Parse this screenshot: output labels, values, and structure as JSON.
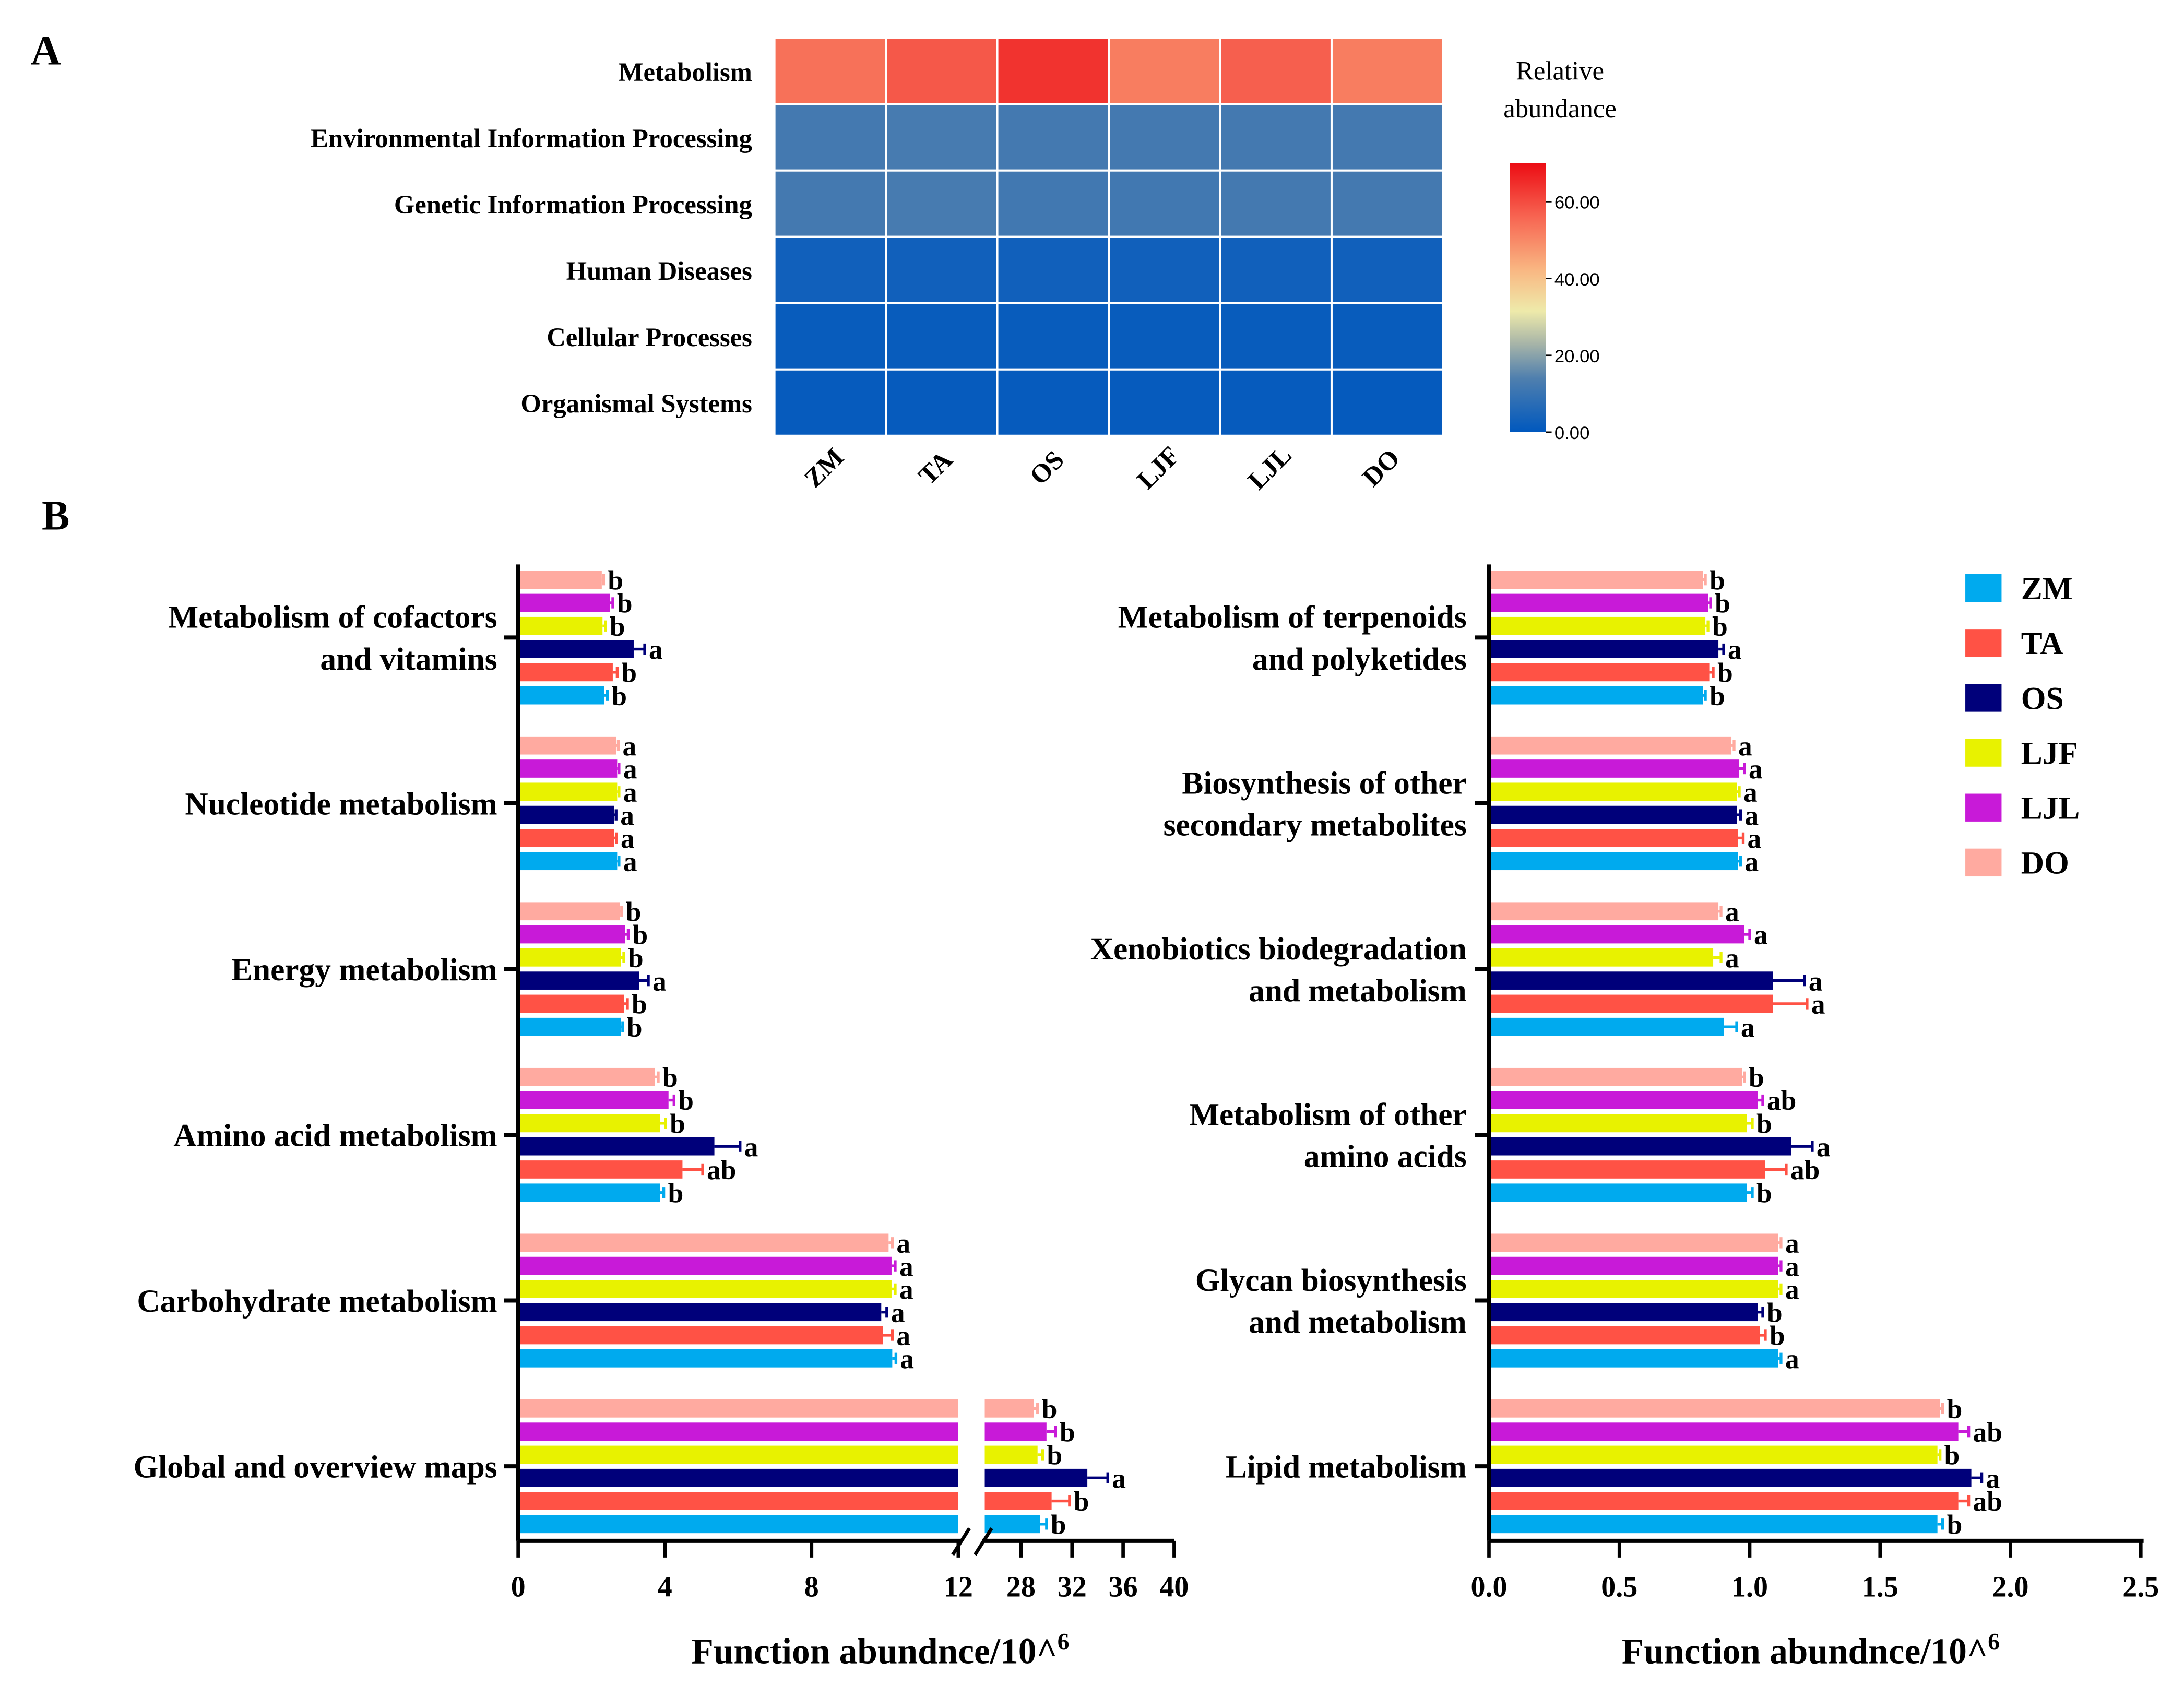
{
  "panel_labels": {
    "a": "A",
    "b": "B"
  },
  "groups": [
    "ZM",
    "TA",
    "OS",
    "LJF",
    "LJL",
    "DO"
  ],
  "colors": {
    "ZM": "#00aaee",
    "TA": "#ff5245",
    "OS": "#00007a",
    "LJF": "#e8f200",
    "LJL": "#c81ad8",
    "DO": "#ffaaa0"
  },
  "chart_data": [
    {
      "type": "heatmap",
      "rows": [
        "Metabolism",
        "Environmental Information Processing",
        "Genetic Information Processing",
        "Human Diseases",
        "Cellular Processes",
        "Organismal Systems"
      ],
      "columns": [
        "ZM",
        "TA",
        "OS",
        "LJF",
        "LJL",
        "DO"
      ],
      "values": [
        [
          54,
          58,
          64,
          52,
          57,
          52
        ],
        [
          12,
          12.5,
          12,
          12,
          12,
          12
        ],
        [
          12,
          12.5,
          11.5,
          11.5,
          12,
          12
        ],
        [
          3,
          3,
          3,
          3,
          3,
          3
        ],
        [
          1.5,
          1.5,
          1.5,
          1.5,
          1.5,
          1.5
        ],
        [
          1,
          1,
          1,
          1,
          1,
          0.8
        ]
      ],
      "colorbar": {
        "title_line1": "Relative",
        "title_line2": "abundance",
        "range": [
          0,
          70
        ],
        "ticks": [
          "0.00",
          "20.00",
          "40.00",
          "60.00"
        ],
        "tick_values": [
          0,
          20,
          40,
          60
        ]
      }
    },
    {
      "type": "bar",
      "orientation": "horizontal",
      "xlabel": "Function abundnce/10^",
      "xlabel_sup": "6",
      "axis_break": [
        12,
        25.2
      ],
      "ticks": [
        0,
        4,
        8,
        12,
        28,
        32,
        36,
        40
      ],
      "categories": [
        {
          "label": [
            "Metabolism of cofactors",
            "and vitamins"
          ],
          "values": [
            2.35,
            2.58,
            3.15,
            2.3,
            2.5,
            2.28
          ],
          "errors": [
            0.08,
            0.12,
            0.3,
            0.08,
            0.08,
            0.05
          ],
          "letters": [
            "b",
            "b",
            "a",
            "b",
            "b",
            "b"
          ]
        },
        {
          "label": [
            "Nucleotide metabolism"
          ],
          "values": [
            2.7,
            2.62,
            2.62,
            2.7,
            2.7,
            2.68
          ],
          "errors": [
            0.05,
            0.06,
            0.05,
            0.05,
            0.05,
            0.05
          ],
          "letters": [
            "a",
            "a",
            "a",
            "a",
            "a",
            "a"
          ]
        },
        {
          "label": [
            "Energy metabolism"
          ],
          "values": [
            2.8,
            2.88,
            3.3,
            2.8,
            2.92,
            2.77
          ],
          "errors": [
            0.05,
            0.1,
            0.25,
            0.08,
            0.08,
            0.05
          ],
          "letters": [
            "b",
            "b",
            "a",
            "b",
            "b",
            "b"
          ]
        },
        {
          "label": [
            "Amino acid metabolism"
          ],
          "values": [
            3.87,
            4.48,
            5.35,
            3.87,
            4.1,
            3.72
          ],
          "errors": [
            0.1,
            0.55,
            0.7,
            0.15,
            0.15,
            0.1
          ],
          "letters": [
            "b",
            "ab",
            "a",
            "b",
            "b",
            "b"
          ]
        },
        {
          "label": [
            "Carbohydrate metabolism"
          ],
          "values": [
            10.2,
            9.95,
            9.9,
            10.18,
            10.18,
            10.1
          ],
          "errors": [
            0.1,
            0.25,
            0.15,
            0.1,
            0.1,
            0.1
          ],
          "letters": [
            "a",
            "a",
            "a",
            "a",
            "a",
            "a"
          ]
        },
        {
          "label": [
            "Global and overview maps"
          ],
          "values": [
            29.5,
            30.4,
            33.2,
            29.3,
            30.0,
            29.0
          ],
          "errors": [
            0.5,
            1.4,
            1.6,
            0.4,
            0.7,
            0.3
          ],
          "letters": [
            "b",
            "b",
            "a",
            "b",
            "b",
            "b"
          ]
        }
      ]
    },
    {
      "type": "bar",
      "orientation": "horizontal",
      "xlabel": "Function abundnce/10^",
      "xlabel_sup": "6",
      "xlim": [
        0,
        2.5
      ],
      "ticks": [
        "0.0",
        "0.5",
        "1.0",
        "1.5",
        "2.0",
        "2.5"
      ],
      "tick_values": [
        0,
        0.5,
        1.0,
        1.5,
        2.0,
        2.5
      ],
      "categories": [
        {
          "label": [
            "Metabolism of terpenoids",
            "and polyketides"
          ],
          "values": [
            0.82,
            0.845,
            0.88,
            0.83,
            0.84,
            0.82
          ],
          "errors": [
            0.01,
            0.015,
            0.02,
            0.01,
            0.01,
            0.01
          ],
          "letters": [
            "b",
            "b",
            "a",
            "b",
            "b",
            "b"
          ]
        },
        {
          "label": [
            "Biosynthesis of other",
            "secondary metabolites"
          ],
          "values": [
            0.955,
            0.955,
            0.95,
            0.95,
            0.96,
            0.93
          ],
          "errors": [
            0.01,
            0.02,
            0.015,
            0.01,
            0.02,
            0.01
          ],
          "letters": [
            "a",
            "a",
            "a",
            "a",
            "a",
            "a"
          ]
        },
        {
          "label": [
            "Xenobiotics biodegradation",
            "and metabolism"
          ],
          "values": [
            0.9,
            1.09,
            1.09,
            0.86,
            0.98,
            0.88
          ],
          "errors": [
            0.05,
            0.13,
            0.12,
            0.03,
            0.02,
            0.01
          ],
          "letters": [
            "a",
            "a",
            "a",
            "a",
            "a",
            "a"
          ]
        },
        {
          "label": [
            "Metabolism of other",
            "amino acids"
          ],
          "values": [
            0.99,
            1.06,
            1.16,
            0.99,
            1.03,
            0.97
          ],
          "errors": [
            0.02,
            0.08,
            0.08,
            0.02,
            0.02,
            0.01
          ],
          "letters": [
            "b",
            "ab",
            "a",
            "b",
            "ab",
            "b"
          ]
        },
        {
          "label": [
            "Glycan biosynthesis",
            "and metabolism"
          ],
          "values": [
            1.11,
            1.04,
            1.03,
            1.11,
            1.11,
            1.11
          ],
          "errors": [
            0.01,
            0.02,
            0.02,
            0.01,
            0.01,
            0.01
          ],
          "letters": [
            "a",
            "b",
            "b",
            "a",
            "a",
            "a"
          ]
        },
        {
          "label": [
            "Lipid metabolism"
          ],
          "values": [
            1.72,
            1.8,
            1.85,
            1.72,
            1.8,
            1.73
          ],
          "errors": [
            0.02,
            0.04,
            0.04,
            0.01,
            0.04,
            0.01
          ],
          "letters": [
            "b",
            "ab",
            "a",
            "b",
            "ab",
            "b"
          ]
        }
      ]
    }
  ]
}
